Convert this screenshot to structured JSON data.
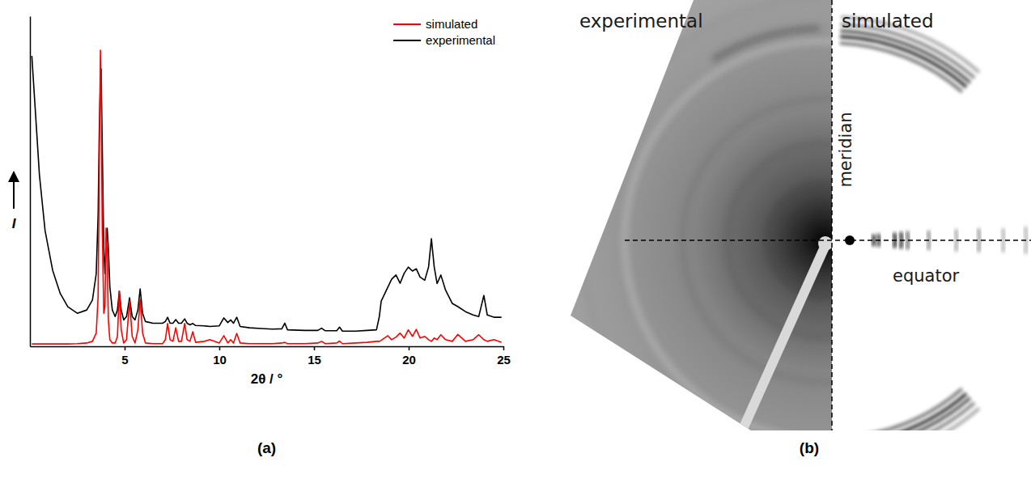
{
  "chart_data": [
    {
      "type": "line",
      "panel_label": "(a)",
      "x_label": "2θ / °",
      "y_label": "I",
      "xlim": [
        0,
        25
      ],
      "xticks": [
        5,
        10,
        15,
        20,
        25
      ],
      "ylim": [
        0,
        100
      ],
      "yticks": [],
      "tick_labels": "x",
      "legend": "upper right",
      "x": [
        0.1,
        0.3,
        0.5,
        0.8,
        1.2,
        1.6,
        2,
        2.5,
        3,
        3.3,
        3.5,
        3.6,
        3.66,
        3.72,
        3.76,
        3.82,
        3.9,
        3.96,
        4.02,
        4.08,
        4.14,
        4.22,
        4.35,
        4.5,
        4.62,
        4.72,
        4.82,
        4.95,
        5.1,
        5.26,
        5.4,
        5.55,
        5.7,
        5.82,
        5.95,
        6.1,
        6.5,
        7,
        7.15,
        7.27,
        7.4,
        7.55,
        7.7,
        7.85,
        8,
        8.17,
        8.3,
        8.45,
        8.6,
        8.75,
        9.2,
        9.5,
        10,
        10.24,
        10.45,
        10.6,
        10.75,
        10.92,
        11.1,
        11.6,
        12.2,
        12.8,
        13.3,
        13.46,
        13.6,
        14.5,
        15.2,
        15.4,
        15.6,
        16.2,
        16.35,
        16.5,
        17.2,
        17.8,
        18.3,
        18.45,
        18.55,
        18.9,
        19.1,
        19.33,
        19.55,
        19.76,
        19.98,
        20.2,
        20.4,
        20.6,
        20.85,
        21.05,
        21.2,
        21.35,
        21.5,
        21.7,
        21.95,
        22.3,
        22.6,
        23,
        23.4,
        23.7,
        23.97,
        24.15,
        24.5,
        24.9
      ],
      "series": [
        {
          "name": "simulated",
          "color": "#ff0000",
          "values": [
            0.7,
            0.7,
            0.7,
            0.7,
            0.7,
            0.7,
            0.7,
            0.8,
            1,
            1.5,
            4,
            15,
            55,
            89.7,
            75,
            35,
            10,
            12,
            35.8,
            28,
            8,
            2,
            1,
            1,
            3,
            16.7,
            5,
            1,
            2,
            13.7,
            3,
            1,
            5,
            14.2,
            4,
            1,
            0.8,
            0.8,
            2,
            6.9,
            2,
            1.5,
            5.6,
            1.5,
            1.5,
            6.9,
            2,
            1.5,
            4.4,
            1.2,
            1.5,
            2,
            1,
            3.2,
            1,
            2,
            1,
            3.9,
            1,
            0.8,
            0.8,
            0.8,
            1,
            1.2,
            0.8,
            0.8,
            1,
            1.5,
            0.8,
            1,
            1.6,
            0.8,
            1,
            1.2,
            1.5,
            1.5,
            1.8,
            3.2,
            2,
            2.8,
            4,
            2.5,
            5,
            3,
            5.1,
            2.5,
            3,
            2,
            1.5,
            2.5,
            2,
            3.5,
            2,
            1.5,
            3.6,
            1.5,
            2,
            3.5,
            2,
            1.5,
            2,
            1.2
          ]
        },
        {
          "name": "experimental",
          "color": "#000000",
          "values": [
            88,
            70,
            52,
            35,
            23,
            16,
            12,
            10,
            11,
            14,
            22,
            40,
            65,
            80,
            84,
            60,
            30,
            22,
            30,
            35.8,
            30,
            18,
            11,
            9,
            11,
            16.7,
            11,
            8,
            9,
            14.7,
            9,
            8,
            11,
            17.4,
            10,
            7.5,
            7,
            7,
            7.5,
            8.8,
            7,
            7,
            8.1,
            7,
            7,
            8.3,
            7,
            6.5,
            6.9,
            6.3,
            6.2,
            6,
            6.2,
            8.6,
            7.2,
            8,
            7,
            8.8,
            6,
            5.6,
            5.4,
            5.2,
            5.3,
            7,
            5,
            4.8,
            4.8,
            5.5,
            4.7,
            4.7,
            5.8,
            4.6,
            4.6,
            4.8,
            5,
            9,
            13.7,
            17.9,
            20.3,
            21.6,
            19.1,
            22.1,
            24,
            22.8,
            23.5,
            21,
            20,
            24,
            32.6,
            24,
            19,
            21.6,
            17,
            13,
            12,
            10.5,
            9.5,
            9,
            15.4,
            9.5,
            8.8,
            8.8
          ]
        }
      ]
    },
    {
      "type": "diffraction-image",
      "panel_label": "(b)",
      "annotations": [
        "experimental",
        "simulated",
        "meridian",
        "equator"
      ]
    }
  ]
}
